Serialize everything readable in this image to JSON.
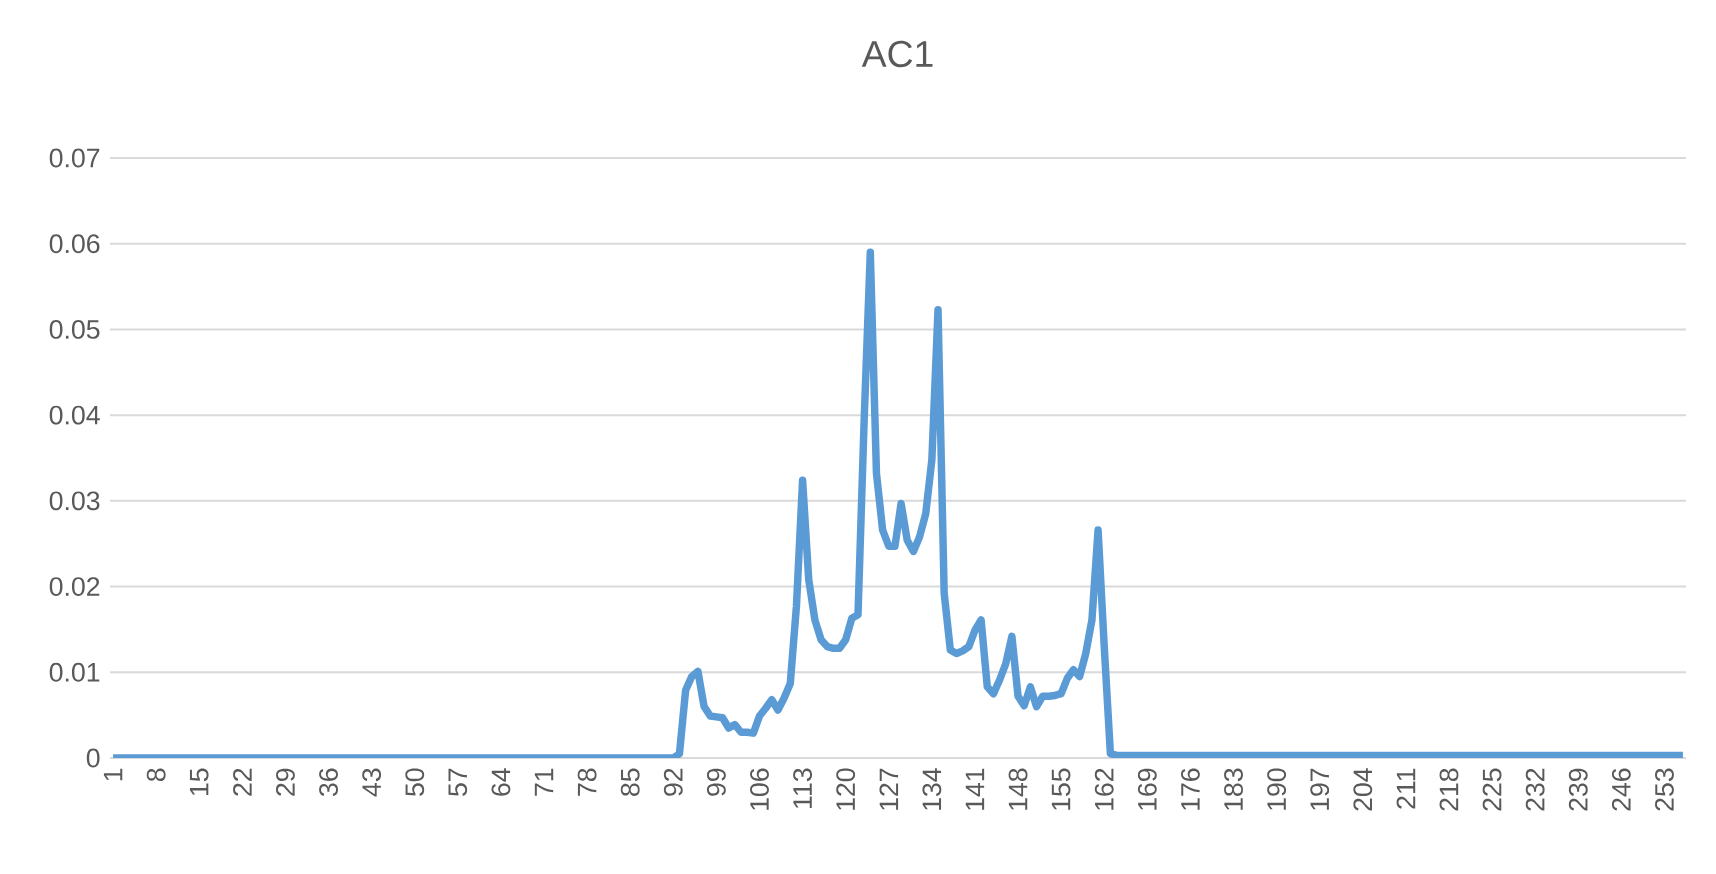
{
  "chart_data": {
    "type": "line",
    "title": "AC1",
    "categories": [
      "1",
      null,
      null,
      null,
      null,
      null,
      null,
      "8",
      null,
      null,
      null,
      null,
      null,
      null,
      "15",
      null,
      null,
      null,
      null,
      null,
      null,
      "22",
      null,
      null,
      null,
      null,
      null,
      null,
      "29",
      null,
      null,
      null,
      null,
      null,
      null,
      "36",
      null,
      null,
      null,
      null,
      null,
      null,
      "43",
      null,
      null,
      null,
      null,
      null,
      null,
      "50",
      null,
      null,
      null,
      null,
      null,
      null,
      "57",
      null,
      null,
      null,
      null,
      null,
      null,
      "64",
      null,
      null,
      null,
      null,
      null,
      null,
      "71",
      null,
      null,
      null,
      null,
      null,
      null,
      "78",
      null,
      null,
      null,
      null,
      null,
      null,
      "85",
      null,
      null,
      null,
      null,
      null,
      null,
      "92",
      null,
      null,
      null,
      null,
      null,
      null,
      "99",
      null,
      null,
      null,
      null,
      null,
      null,
      "106",
      null,
      null,
      null,
      null,
      null,
      null,
      "113",
      null,
      null,
      null,
      null,
      null,
      null,
      "120",
      null,
      null,
      null,
      null,
      null,
      null,
      "127",
      null,
      null,
      null,
      null,
      null,
      null,
      "134",
      null,
      null,
      null,
      null,
      null,
      null,
      "141",
      null,
      null,
      null,
      null,
      null,
      null,
      "148",
      null,
      null,
      null,
      null,
      null,
      null,
      "155",
      null,
      null,
      null,
      null,
      null,
      null,
      "162",
      null,
      null,
      null,
      null,
      null,
      null,
      "169",
      null,
      null,
      null,
      null,
      null,
      null,
      "176",
      null,
      null,
      null,
      null,
      null,
      null,
      "183",
      null,
      null,
      null,
      null,
      null,
      null,
      "190",
      null,
      null,
      null,
      null,
      null,
      null,
      "197",
      null,
      null,
      null,
      null,
      null,
      null,
      "204",
      null,
      null,
      null,
      null,
      null,
      null,
      "211",
      null,
      null,
      null,
      null,
      null,
      null,
      "218",
      null,
      null,
      null,
      null,
      null,
      null,
      "225",
      null,
      null,
      null,
      null,
      null,
      null,
      "232",
      null,
      null,
      null,
      null,
      null,
      null,
      "239",
      null,
      null,
      null,
      null,
      null,
      null,
      "246",
      null,
      null,
      null,
      null,
      null,
      null,
      "253",
      null,
      null,
      null
    ],
    "series": [
      {
        "color": "#5b9bd5",
        "values": [
          0,
          0,
          0,
          0,
          0,
          0,
          0,
          0,
          0,
          0,
          0,
          0,
          0,
          0,
          0,
          0,
          0,
          0,
          0,
          0,
          0,
          0,
          0,
          0,
          0,
          0,
          0,
          0,
          0,
          0,
          0,
          0,
          0,
          0,
          0,
          0,
          0,
          0,
          0,
          0,
          0,
          0,
          0,
          0,
          0,
          0,
          0,
          0,
          0,
          0,
          0,
          0,
          0,
          0,
          0,
          0,
          0,
          0,
          0,
          0,
          0,
          0,
          0,
          0,
          0,
          0,
          0,
          0,
          0,
          0,
          0,
          0,
          0,
          0,
          0,
          0,
          0,
          0,
          0,
          0,
          0,
          0,
          0,
          0,
          0,
          0,
          0,
          0,
          0,
          0,
          0,
          0,
          0.0005,
          0.0079,
          0.0095,
          0.0101,
          0.006,
          0.0049,
          0.0048,
          0.0047,
          0.0035,
          0.0039,
          0.003,
          0.003,
          0.0029,
          0.0049,
          0.0058,
          0.0068,
          0.0056,
          0.007,
          0.0087,
          0.0177,
          0.0324,
          0.0208,
          0.0161,
          0.0138,
          0.013,
          0.0128,
          0.0128,
          0.0138,
          0.0163,
          0.0167,
          0.0394,
          0.059,
          0.0332,
          0.0266,
          0.0247,
          0.0247,
          0.0297,
          0.0254,
          0.0241,
          0.0258,
          0.0285,
          0.0348,
          0.0523,
          0.0192,
          0.0126,
          0.0122,
          0.0125,
          0.013,
          0.0149,
          0.0161,
          0.0083,
          0.0075,
          0.0091,
          0.011,
          0.0142,
          0.0072,
          0.0061,
          0.0083,
          0.006,
          0.0072,
          0.0072,
          0.0073,
          0.0075,
          0.0093,
          0.0103,
          0.0095,
          0.0122,
          0.0161,
          0.0266,
          0.013,
          0.0005,
          0.0003,
          0.0003,
          0.0003,
          0.0003,
          0.0003,
          0.0003,
          0.0003,
          0.0003,
          0.0003,
          0.0003,
          0.0003,
          0.0003,
          0.0003,
          0.0003,
          0.0003,
          0.0003,
          0.0003,
          0.0003,
          0.0003,
          0.0003,
          0.0003,
          0.0003,
          0.0003,
          0.0003,
          0.0003,
          0.0003,
          0.0003,
          0.0003,
          0.0003,
          0.0003,
          0.0003,
          0.0003,
          0.0003,
          0.0003,
          0.0003,
          0.0003,
          0.0003,
          0.0003,
          0.0003,
          0.0003,
          0.0003,
          0.0003,
          0.0003,
          0.0003,
          0.0003,
          0.0003,
          0.0003,
          0.0003,
          0.0003,
          0.0003,
          0.0003,
          0.0003,
          0.0003,
          0.0003,
          0.0003,
          0.0003,
          0.0003,
          0.0003,
          0.0003,
          0.0003,
          0.0003,
          0.0003,
          0.0003,
          0.0003,
          0.0003,
          0.0003,
          0.0003,
          0.0003,
          0.0003,
          0.0003,
          0.0003,
          0.0003,
          0.0003,
          0.0003,
          0.0003,
          0.0003,
          0.0003,
          0.0003,
          0.0003,
          0.0003,
          0.0003,
          0.0003,
          0.0003,
          0.0003,
          0.0003,
          0.0003,
          0.0003,
          0.0003,
          0.0003,
          0.0003,
          0.0003,
          0.0003,
          0.0003
        ]
      }
    ],
    "ylim": [
      0,
      0.07
    ],
    "yticks": [
      0,
      0.01,
      0.02,
      0.03,
      0.04,
      0.05,
      0.06,
      0.07
    ],
    "grid": "y"
  }
}
